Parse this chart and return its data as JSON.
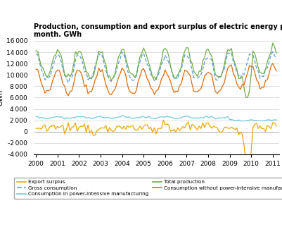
{
  "title": "Production, consumption and export surplus of electric energy per\nmonth. GWh",
  "ylabel": "GWh",
  "ylim": [
    -4000,
    16000
  ],
  "yticks": [
    -4000,
    -2000,
    0,
    2000,
    4000,
    6000,
    8000,
    10000,
    12000,
    14000,
    16000
  ],
  "xlim_start": 1999.9,
  "xlim_end": 2011.3,
  "xtick_years": [
    2000,
    2001,
    2002,
    2003,
    2004,
    2005,
    2006,
    2007,
    2008,
    2009,
    2010,
    2011
  ],
  "colors": {
    "export_surplus": "#f0a500",
    "gross_consumption": "#5b9bd5",
    "consumption_power_intensive": "#70c8e0",
    "total_production": "#70ad47",
    "consumption_without_power_intensive": "#e36c09"
  },
  "bg_color": "#ffffff",
  "grid_color": "#d0d0d0"
}
